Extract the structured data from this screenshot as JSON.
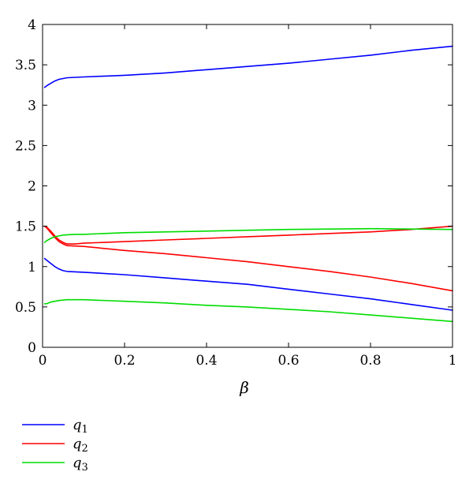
{
  "chart_data": {
    "type": "line",
    "title": "",
    "xlabel": "β",
    "ylabel": "",
    "xlim": [
      0,
      1
    ],
    "ylim": [
      0,
      4
    ],
    "xticks": [
      "0",
      "0.2",
      "0.4",
      "0.6",
      "0.8",
      "1"
    ],
    "yticks": [
      "0",
      "0.5",
      "1",
      "1.5",
      "2",
      "2.5",
      "3",
      "3.5",
      "4"
    ],
    "grid": false,
    "legend_position": "bottom-left",
    "legend": [
      {
        "var": "q",
        "sub": "1",
        "color": "#0000ff"
      },
      {
        "var": "q",
        "sub": "2",
        "color": "#ff0000"
      },
      {
        "var": "q",
        "sub": "3",
        "color": "#00dd00"
      }
    ],
    "series": [
      {
        "legend_index": 0,
        "color": "#0000ff",
        "x": [
          0.005,
          0.01,
          0.02,
          0.03,
          0.04,
          0.05,
          0.06,
          0.08,
          0.1,
          0.2,
          0.3,
          0.4,
          0.5,
          0.6,
          0.7,
          0.8,
          0.9,
          1.0
        ],
        "y": [
          3.22,
          3.24,
          3.27,
          3.3,
          3.32,
          3.33,
          3.34,
          3.345,
          3.35,
          3.37,
          3.4,
          3.44,
          3.48,
          3.52,
          3.57,
          3.62,
          3.68,
          3.73
        ]
      },
      {
        "legend_index": 0,
        "color": "#0000ff",
        "x": [
          0.005,
          0.01,
          0.02,
          0.03,
          0.04,
          0.05,
          0.06,
          0.08,
          0.1,
          0.2,
          0.3,
          0.4,
          0.5,
          0.6,
          0.7,
          0.8,
          0.9,
          1.0
        ],
        "y": [
          1.1,
          1.08,
          1.04,
          1.0,
          0.97,
          0.95,
          0.94,
          0.935,
          0.93,
          0.9,
          0.86,
          0.82,
          0.78,
          0.72,
          0.66,
          0.6,
          0.53,
          0.46
        ]
      },
      {
        "legend_index": 1,
        "color": "#ff0000",
        "x": [
          0.005,
          0.01,
          0.02,
          0.03,
          0.04,
          0.05,
          0.06,
          0.08,
          0.1,
          0.2,
          0.3,
          0.4,
          0.5,
          0.6,
          0.7,
          0.8,
          0.9,
          1.0
        ],
        "y": [
          1.5,
          1.49,
          1.44,
          1.38,
          1.33,
          1.3,
          1.28,
          1.28,
          1.29,
          1.31,
          1.33,
          1.35,
          1.37,
          1.39,
          1.41,
          1.43,
          1.46,
          1.5
        ]
      },
      {
        "legend_index": 1,
        "color": "#ff0000",
        "x": [
          0.005,
          0.01,
          0.02,
          0.03,
          0.04,
          0.05,
          0.06,
          0.08,
          0.1,
          0.2,
          0.3,
          0.4,
          0.5,
          0.6,
          0.7,
          0.8,
          0.9,
          1.0
        ],
        "y": [
          1.5,
          1.48,
          1.42,
          1.36,
          1.31,
          1.28,
          1.26,
          1.255,
          1.25,
          1.2,
          1.16,
          1.11,
          1.06,
          1.0,
          0.94,
          0.87,
          0.79,
          0.7
        ]
      },
      {
        "legend_index": 2,
        "color": "#00dd00",
        "x": [
          0.005,
          0.01,
          0.02,
          0.03,
          0.04,
          0.05,
          0.06,
          0.08,
          0.1,
          0.2,
          0.3,
          0.4,
          0.5,
          0.6,
          0.7,
          0.8,
          0.9,
          1.0
        ],
        "y": [
          1.3,
          1.32,
          1.35,
          1.37,
          1.38,
          1.39,
          1.395,
          1.4,
          1.4,
          1.42,
          1.43,
          1.44,
          1.45,
          1.46,
          1.465,
          1.47,
          1.465,
          1.46
        ]
      },
      {
        "legend_index": 2,
        "color": "#00dd00",
        "x": [
          0.005,
          0.01,
          0.02,
          0.03,
          0.04,
          0.05,
          0.06,
          0.08,
          0.1,
          0.2,
          0.3,
          0.4,
          0.5,
          0.6,
          0.7,
          0.8,
          0.9,
          1.0
        ],
        "y": [
          0.54,
          0.54,
          0.56,
          0.57,
          0.58,
          0.585,
          0.59,
          0.59,
          0.59,
          0.57,
          0.55,
          0.52,
          0.5,
          0.47,
          0.44,
          0.4,
          0.36,
          0.32
        ]
      }
    ]
  }
}
